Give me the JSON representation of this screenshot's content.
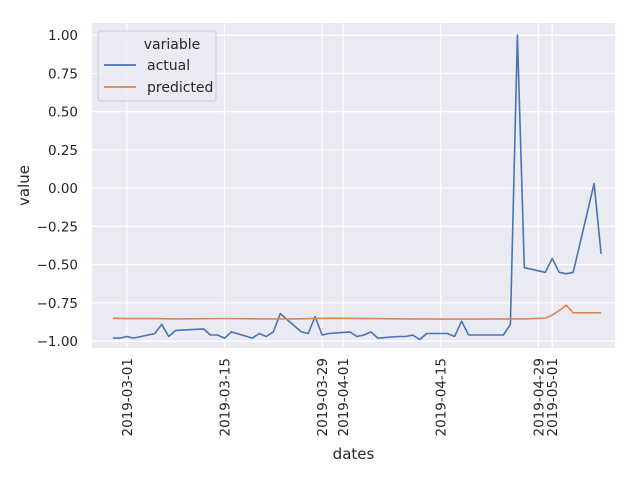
{
  "chart_data": {
    "type": "line",
    "xlabel": "dates",
    "ylabel": "value",
    "x_ticks": [
      "2019-03-01",
      "2019-03-15",
      "2019-03-29",
      "2019-04-01",
      "2019-04-15",
      "2019-04-29",
      "2019-05-01"
    ],
    "y_ticks": [
      "1.00",
      "0.75",
      "0.50",
      "0.25",
      "0.00",
      "−0.25",
      "−0.50",
      "−0.75",
      "−1.00"
    ],
    "x_range": [
      "2019-02-24",
      "2019-05-10"
    ],
    "ylim": [
      -1.045,
      1.08
    ],
    "grid": true,
    "background": "#eaeaf2",
    "legend": {
      "title": "variable",
      "location": "upper-left"
    },
    "series": [
      {
        "name": "actual",
        "color": "#4c72b0",
        "points": [
          [
            "2019-02-27",
            -0.98
          ],
          [
            "2019-02-28",
            -0.98
          ],
          [
            "2019-03-01",
            -0.97
          ],
          [
            "2019-03-02",
            -0.98
          ],
          [
            "2019-03-05",
            -0.95
          ],
          [
            "2019-03-06",
            -0.89
          ],
          [
            "2019-03-07",
            -0.97
          ],
          [
            "2019-03-08",
            -0.93
          ],
          [
            "2019-03-12",
            -0.92
          ],
          [
            "2019-03-13",
            -0.96
          ],
          [
            "2019-03-14",
            -0.96
          ],
          [
            "2019-03-15",
            -0.98
          ],
          [
            "2019-03-16",
            -0.94
          ],
          [
            "2019-03-19",
            -0.98
          ],
          [
            "2019-03-20",
            -0.95
          ],
          [
            "2019-03-21",
            -0.97
          ],
          [
            "2019-03-22",
            -0.94
          ],
          [
            "2019-03-23",
            -0.82
          ],
          [
            "2019-03-26",
            -0.94
          ],
          [
            "2019-03-27",
            -0.95
          ],
          [
            "2019-03-28",
            -0.84
          ],
          [
            "2019-03-29",
            -0.96
          ],
          [
            "2019-03-30",
            -0.95
          ],
          [
            "2019-04-02",
            -0.94
          ],
          [
            "2019-04-03",
            -0.97
          ],
          [
            "2019-04-04",
            -0.96
          ],
          [
            "2019-04-05",
            -0.94
          ],
          [
            "2019-04-06",
            -0.98
          ],
          [
            "2019-04-09",
            -0.97
          ],
          [
            "2019-04-10",
            -0.97
          ],
          [
            "2019-04-11",
            -0.96
          ],
          [
            "2019-04-12",
            -0.99
          ],
          [
            "2019-04-13",
            -0.95
          ],
          [
            "2019-04-16",
            -0.95
          ],
          [
            "2019-04-17",
            -0.97
          ],
          [
            "2019-04-18",
            -0.87
          ],
          [
            "2019-04-19",
            -0.96
          ],
          [
            "2019-04-23",
            -0.96
          ],
          [
            "2019-04-24",
            -0.96
          ],
          [
            "2019-04-25",
            -0.89
          ],
          [
            "2019-04-26",
            1.0
          ],
          [
            "2019-04-27",
            -0.52
          ],
          [
            "2019-04-30",
            -0.55
          ],
          [
            "2019-05-01",
            -0.46
          ],
          [
            "2019-05-02",
            -0.55
          ],
          [
            "2019-05-03",
            -0.56
          ],
          [
            "2019-05-04",
            -0.55
          ],
          [
            "2019-05-07",
            0.03
          ],
          [
            "2019-05-08",
            -0.43
          ]
        ]
      },
      {
        "name": "predicted",
        "color": "#dd8452",
        "points": [
          [
            "2019-02-27",
            -0.85
          ],
          [
            "2019-03-01",
            -0.853
          ],
          [
            "2019-03-05",
            -0.853
          ],
          [
            "2019-03-08",
            -0.855
          ],
          [
            "2019-03-15",
            -0.852
          ],
          [
            "2019-03-20",
            -0.855
          ],
          [
            "2019-03-25",
            -0.855
          ],
          [
            "2019-03-30",
            -0.85
          ],
          [
            "2019-04-05",
            -0.853
          ],
          [
            "2019-04-10",
            -0.855
          ],
          [
            "2019-04-15",
            -0.856
          ],
          [
            "2019-04-20",
            -0.856
          ],
          [
            "2019-04-25",
            -0.855
          ],
          [
            "2019-04-27",
            -0.855
          ],
          [
            "2019-04-30",
            -0.85
          ],
          [
            "2019-05-01",
            -0.83
          ],
          [
            "2019-05-02",
            -0.8
          ],
          [
            "2019-05-03",
            -0.765
          ],
          [
            "2019-05-04",
            -0.815
          ],
          [
            "2019-05-06",
            -0.815
          ],
          [
            "2019-05-08",
            -0.815
          ]
        ]
      }
    ]
  }
}
